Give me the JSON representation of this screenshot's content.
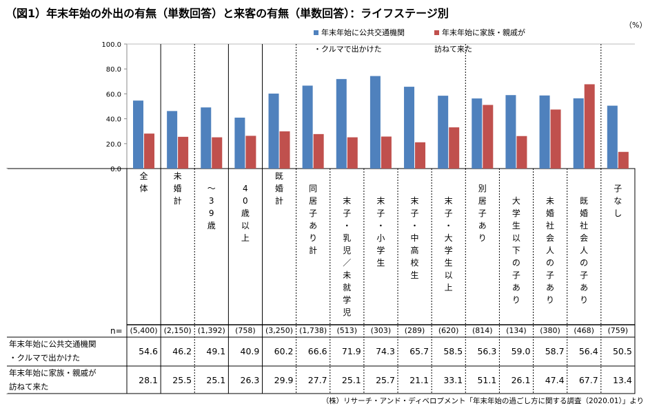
{
  "title": "（図1）年末年始の外出の有無（単数回答）と来客の有無（単数回答）：ライフステージ別",
  "unit": "（%）",
  "source": "（株）リサーチ・アンド・ディベロプメント「年末年始の過ごし方に関する調査（2020.01）」より",
  "n_label": "n=",
  "chart_data": {
    "type": "bar",
    "ylim": [
      0,
      100
    ],
    "yticks": [
      "0.0",
      "20.0",
      "40.0",
      "60.0",
      "80.0",
      "100.0"
    ],
    "categories": [
      "全体",
      "未婚計",
      "～39歳",
      "40歳以上",
      "既婚計",
      "同居子あり計",
      "末子・乳児／未就学児",
      "末子・小学生",
      "末子・中高校生",
      "末子・大学生以上",
      "別居子あり",
      "大学生以下の子あり",
      "未婚社会人の子あり",
      "既婚社会人の子あり",
      "子なし"
    ],
    "n": [
      "(5,400)",
      "(2,150)",
      "(1,392)",
      "(758)",
      "(3,250)",
      "(1,738)",
      "(513)",
      "(303)",
      "(289)",
      "(620)",
      "(814)",
      "(134)",
      "(380)",
      "(468)",
      "(759)"
    ],
    "series": [
      {
        "name": "年末年始に公共交通機関・クルマで出かけた",
        "line1": "年末年始に公共交通機関",
        "line2": "・クルマで出かけた",
        "color": "#4f81bd",
        "values": [
          54.6,
          46.2,
          49.1,
          40.9,
          60.2,
          66.6,
          71.9,
          74.3,
          65.7,
          58.5,
          56.3,
          59.0,
          58.7,
          56.4,
          50.5
        ]
      },
      {
        "name": "年末年始に家族・親戚が訪ねて来た",
        "line1": "年末年始に家族・親戚が",
        "line2": "訪ねて来た",
        "color": "#c0504d",
        "values": [
          28.1,
          25.5,
          25.1,
          26.3,
          29.9,
          27.7,
          25.1,
          25.7,
          21.1,
          33.1,
          51.1,
          26.1,
          47.4,
          67.7,
          13.4
        ]
      }
    ]
  }
}
